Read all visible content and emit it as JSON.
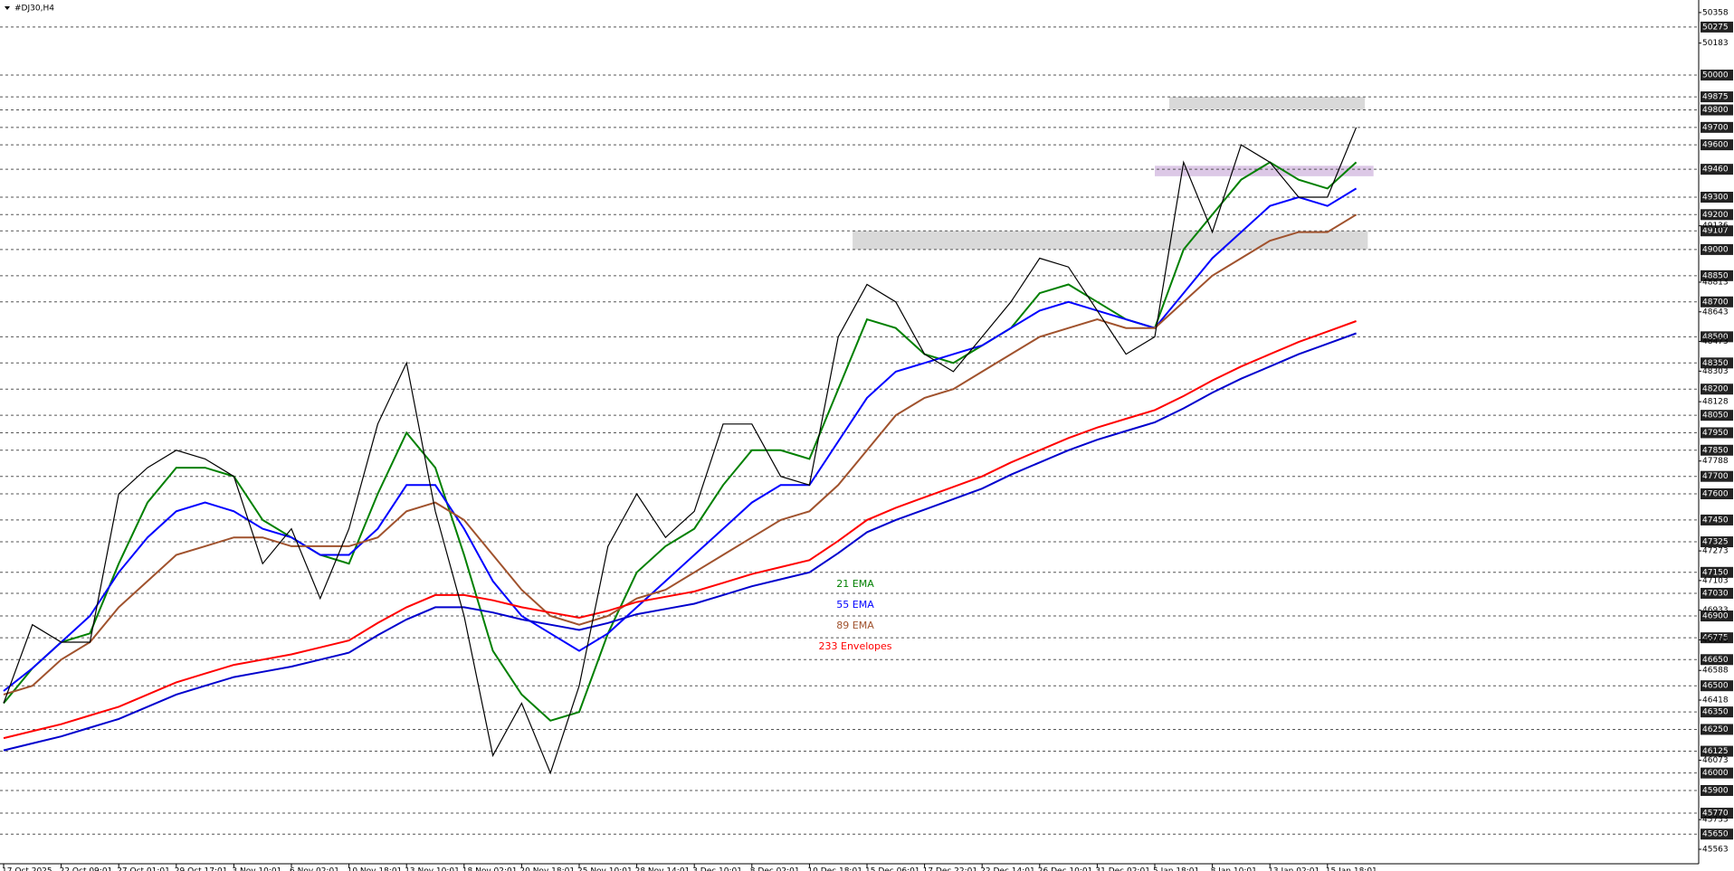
{
  "chart_data": {
    "type": "line",
    "title": "#DJ30,H4",
    "categories": [
      "17 Oct 2025",
      null,
      "22 Oct 09:01",
      null,
      "27 Oct 01:01",
      null,
      "29 Oct 17:01",
      null,
      "3 Nov 10:01",
      null,
      "6 Nov 02:01",
      null,
      "10 Nov 18:01",
      null,
      "13 Nov 10:01",
      null,
      "18 Nov 02:01",
      null,
      "20 Nov 18:01",
      null,
      "25 Nov 10:01",
      null,
      "28 Nov 14:01",
      null,
      "3 Dec 10:01",
      null,
      "8 Dec 02:01",
      null,
      "10 Dec 18:01",
      null,
      "15 Dec 06:01",
      null,
      "17 Dec 22:01",
      null,
      "22 Dec 14:01",
      null,
      "26 Dec 10:01",
      null,
      "31 Dec 02:01",
      null,
      "5 Jan 18:01",
      null,
      "8 Jan 10:01",
      null,
      "13 Jan 02:01",
      null,
      "15 Jan 18:01",
      null
    ],
    "close": [
      46400,
      46850,
      46750,
      46750,
      47600,
      47750,
      47850,
      47800,
      47700,
      47200,
      47400,
      47000,
      47400,
      48000,
      48350,
      47500,
      46900,
      46100,
      46400,
      46000,
      46500,
      47300,
      47600,
      47350,
      47500,
      48000,
      48000,
      47700,
      47650,
      48500,
      48800,
      48700,
      48400,
      48300,
      48500,
      48700,
      48950,
      48900,
      48650,
      48400,
      48500,
      49500,
      49100,
      49600,
      49500,
      49300,
      49300,
      49700
    ],
    "close_color": "#000000",
    "series": [
      {
        "name": "21 EMA",
        "color": "#008000",
        "values": [
          46400,
          46600,
          46750,
          46800,
          47200,
          47550,
          47750,
          47750,
          47700,
          47450,
          47350,
          47250,
          47200,
          47600,
          47950,
          47750,
          47250,
          46700,
          46450,
          46300,
          46350,
          46800,
          47150,
          47300,
          47400,
          47650,
          47850,
          47850,
          47800,
          48200,
          48600,
          48550,
          48400,
          48350,
          48450,
          48550,
          48750,
          48800,
          48700,
          48600,
          48550,
          49000,
          49200,
          49400,
          49500,
          49400,
          49350,
          49500
        ]
      },
      {
        "name": "55 EMA",
        "color": "#0000ff",
        "values": [
          46470,
          46600,
          46750,
          46900,
          47150,
          47350,
          47500,
          47550,
          47500,
          47400,
          47350,
          47250,
          47250,
          47400,
          47650,
          47650,
          47400,
          47100,
          46900,
          46800,
          46700,
          46800,
          46950,
          47100,
          47250,
          47400,
          47550,
          47650,
          47650,
          47900,
          48150,
          48300,
          48350,
          48400,
          48450,
          48550,
          48650,
          48700,
          48650,
          48600,
          48550,
          48750,
          48950,
          49100,
          49250,
          49300,
          49250,
          49350
        ]
      },
      {
        "name": "89 EMA",
        "color": "#a0522d",
        "values": [
          46450,
          46500,
          46650,
          46750,
          46950,
          47100,
          47250,
          47300,
          47350,
          47350,
          47300,
          47300,
          47300,
          47350,
          47500,
          47550,
          47450,
          47250,
          47050,
          46900,
          46850,
          46900,
          47000,
          47050,
          47150,
          47250,
          47350,
          47450,
          47500,
          47650,
          47850,
          48050,
          48150,
          48200,
          48300,
          48400,
          48500,
          48550,
          48600,
          48550,
          48550,
          48700,
          48850,
          48950,
          49050,
          49100,
          49100,
          49200
        ]
      },
      {
        "name": "233 Envelopes",
        "color": "#ff0000",
        "lower_color": "#0000cd",
        "values": [
          46200,
          46240,
          46280,
          46330,
          46380,
          46450,
          46520,
          46570,
          46620,
          46650,
          46680,
          46720,
          46760,
          46860,
          46950,
          47020,
          47020,
          46990,
          46950,
          46920,
          46890,
          46930,
          46980,
          47010,
          47040,
          47090,
          47140,
          47180,
          47220,
          47330,
          47450,
          47520,
          47580,
          47640,
          47700,
          47780,
          47850,
          47920,
          47980,
          48030,
          48080,
          48160,
          48250,
          48330,
          48400,
          48470,
          48530,
          48590
        ],
        "lower": [
          46130,
          46170,
          46210,
          46260,
          46310,
          46380,
          46450,
          46500,
          46550,
          46580,
          46610,
          46650,
          46690,
          46790,
          46880,
          46950,
          46950,
          46920,
          46880,
          46850,
          46820,
          46860,
          46910,
          46940,
          46970,
          47020,
          47070,
          47110,
          47150,
          47260,
          47380,
          47450,
          47510,
          47570,
          47630,
          47710,
          47780,
          47850,
          47910,
          47960,
          48010,
          48090,
          48180,
          48260,
          48330,
          48400,
          48460,
          48520
        ]
      }
    ],
    "zones": [
      {
        "x": [
          40.5,
          47.3
        ],
        "y": [
          49800,
          49875
        ],
        "color": "#d9d9d9"
      },
      {
        "x": [
          40,
          47.6
        ],
        "y": [
          49420,
          49480
        ],
        "color": "#dcc8e6"
      },
      {
        "x": [
          29.5,
          47.4
        ],
        "y": [
          49000,
          49107
        ],
        "color": "#d9d9d9"
      }
    ],
    "ylim": [
      45480,
      50430
    ],
    "yticks": [
      50358,
      50183,
      49136,
      48813,
      48643,
      48473,
      48303,
      48128,
      47788,
      47273,
      47103,
      46933,
      46763,
      46588,
      46418,
      46073,
      45733,
      45563
    ],
    "levels": [
      50275,
      50000,
      49875,
      49800,
      49700,
      49600,
      49460,
      49300,
      49200,
      49107,
      49000,
      48850,
      48700,
      48500,
      48350,
      48200,
      48050,
      47950,
      47850,
      47700,
      47600,
      47450,
      47325,
      47150,
      47030,
      46900,
      46775,
      46650,
      46500,
      46350,
      46250,
      46125,
      46000,
      45900,
      45770,
      45650
    ]
  }
}
